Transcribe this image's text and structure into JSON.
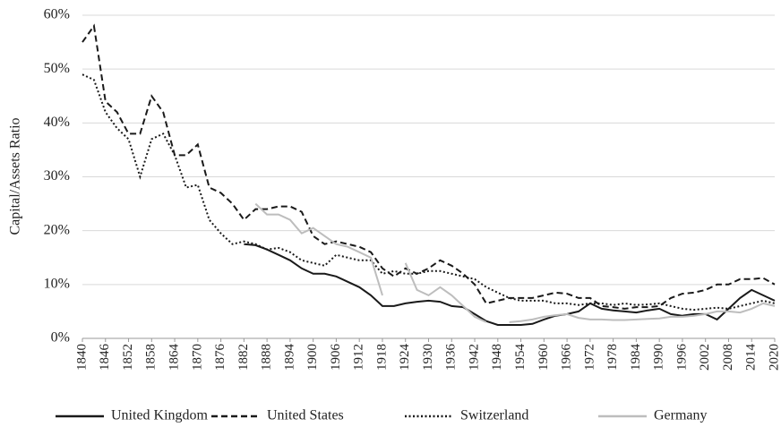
{
  "chart_data": {
    "type": "line",
    "y_label": "Capital/Assets Ratio",
    "x": [
      1840,
      1843,
      1846,
      1849,
      1852,
      1855,
      1858,
      1861,
      1864,
      1867,
      1870,
      1873,
      1876,
      1879,
      1882,
      1885,
      1888,
      1891,
      1894,
      1897,
      1900,
      1903,
      1906,
      1909,
      1912,
      1915,
      1918,
      1921,
      1924,
      1927,
      1930,
      1933,
      1936,
      1939,
      1942,
      1945,
      1948,
      1951,
      1954,
      1957,
      1960,
      1963,
      1966,
      1969,
      1972,
      1975,
      1978,
      1981,
      1984,
      1987,
      1990,
      1993,
      1996,
      1999,
      2002,
      2005,
      2008,
      2011,
      2014,
      2017,
      2020
    ],
    "series": [
      {
        "name": "United Kingdom",
        "color": "#1a1a1a",
        "dash": "solid",
        "values": [
          null,
          null,
          null,
          null,
          null,
          null,
          null,
          null,
          null,
          null,
          null,
          null,
          null,
          null,
          17.5,
          17.3,
          16.5,
          15.5,
          14.5,
          13,
          12,
          12,
          11.5,
          10.5,
          9.5,
          8,
          6,
          6,
          6.5,
          6.8,
          7,
          6.8,
          6,
          5.8,
          4.5,
          3.2,
          2.5,
          2.5,
          2.5,
          2.7,
          3.5,
          4.2,
          4.5,
          5,
          6.5,
          5.5,
          5.2,
          5,
          4.8,
          5.2,
          5.5,
          4.5,
          4.2,
          4.5,
          4.5,
          3.5,
          5.5,
          7.5,
          9,
          8,
          7
        ]
      },
      {
        "name": "United States",
        "color": "#1a1a1a",
        "dash": "dashed",
        "values": [
          55,
          58,
          44,
          42,
          38,
          38,
          45,
          42,
          34,
          34,
          36,
          28,
          27,
          25,
          22,
          24,
          24,
          24.5,
          24.5,
          23.5,
          19,
          17.5,
          18,
          17.5,
          17,
          16,
          13,
          11.5,
          13,
          12,
          13,
          14.5,
          13.5,
          12,
          10,
          6.5,
          7,
          7.5,
          7.5,
          7.5,
          8,
          8.5,
          8.3,
          7.5,
          7.5,
          6,
          5.8,
          5.5,
          5.8,
          5.8,
          6,
          7.5,
          8.3,
          8.5,
          9,
          10,
          10,
          11,
          11,
          11.2,
          10
        ]
      },
      {
        "name": "Switzerland",
        "color": "#1a1a1a",
        "dash": "dotted",
        "values": [
          49,
          48,
          42,
          39,
          37,
          30,
          37,
          38,
          34,
          28,
          28.5,
          22,
          19.5,
          17.5,
          18,
          17.5,
          16.5,
          16.8,
          16,
          14.5,
          14,
          13.5,
          15.5,
          15,
          14.5,
          14.5,
          12,
          12.5,
          12,
          12,
          12.5,
          12.5,
          12,
          11.5,
          11,
          9.5,
          8.5,
          7.5,
          7,
          7,
          7,
          6.5,
          6.5,
          6.2,
          6.5,
          6.5,
          6.2,
          6.5,
          6.2,
          6.3,
          6.5,
          6,
          5.5,
          5.3,
          5.5,
          5.7,
          5.5,
          6,
          6.5,
          7,
          6.5
        ]
      },
      {
        "name": "Germany",
        "color": "#bdbdbd",
        "dash": "solid",
        "values": [
          null,
          null,
          null,
          null,
          null,
          null,
          null,
          null,
          null,
          null,
          null,
          null,
          null,
          null,
          null,
          25,
          23,
          23,
          22,
          19.5,
          20.5,
          19,
          17.5,
          17,
          16,
          15,
          8,
          null,
          14,
          9,
          8,
          9.5,
          8,
          6,
          4,
          3,
          null,
          3,
          3.2,
          3.5,
          4,
          4.3,
          4.5,
          3.8,
          3.5,
          3.5,
          3.4,
          3.4,
          3.5,
          3.6,
          3.7,
          4,
          4,
          4.2,
          4.5,
          5,
          5,
          4.8,
          5.5,
          6.5,
          6
        ]
      }
    ],
    "xlim": [
      1840,
      2020
    ],
    "xticks": [
      1840,
      1846,
      1852,
      1858,
      1864,
      1870,
      1876,
      1882,
      1888,
      1894,
      1900,
      1906,
      1912,
      1918,
      1924,
      1930,
      1936,
      1942,
      1948,
      1954,
      1960,
      1966,
      1972,
      1978,
      1984,
      1990,
      1996,
      2002,
      2008,
      2014,
      2020
    ],
    "ylim": [
      0,
      60
    ],
    "yticks": [
      {
        "value": 0,
        "label": "0%"
      },
      {
        "value": 10,
        "label": "10%"
      },
      {
        "value": 20,
        "label": "20%"
      },
      {
        "value": 30,
        "label": "30%"
      },
      {
        "value": 40,
        "label": "40%"
      },
      {
        "value": 50,
        "label": "50%"
      },
      {
        "value": 60,
        "label": "60%"
      }
    ],
    "grid": true,
    "legend": "bottom"
  }
}
